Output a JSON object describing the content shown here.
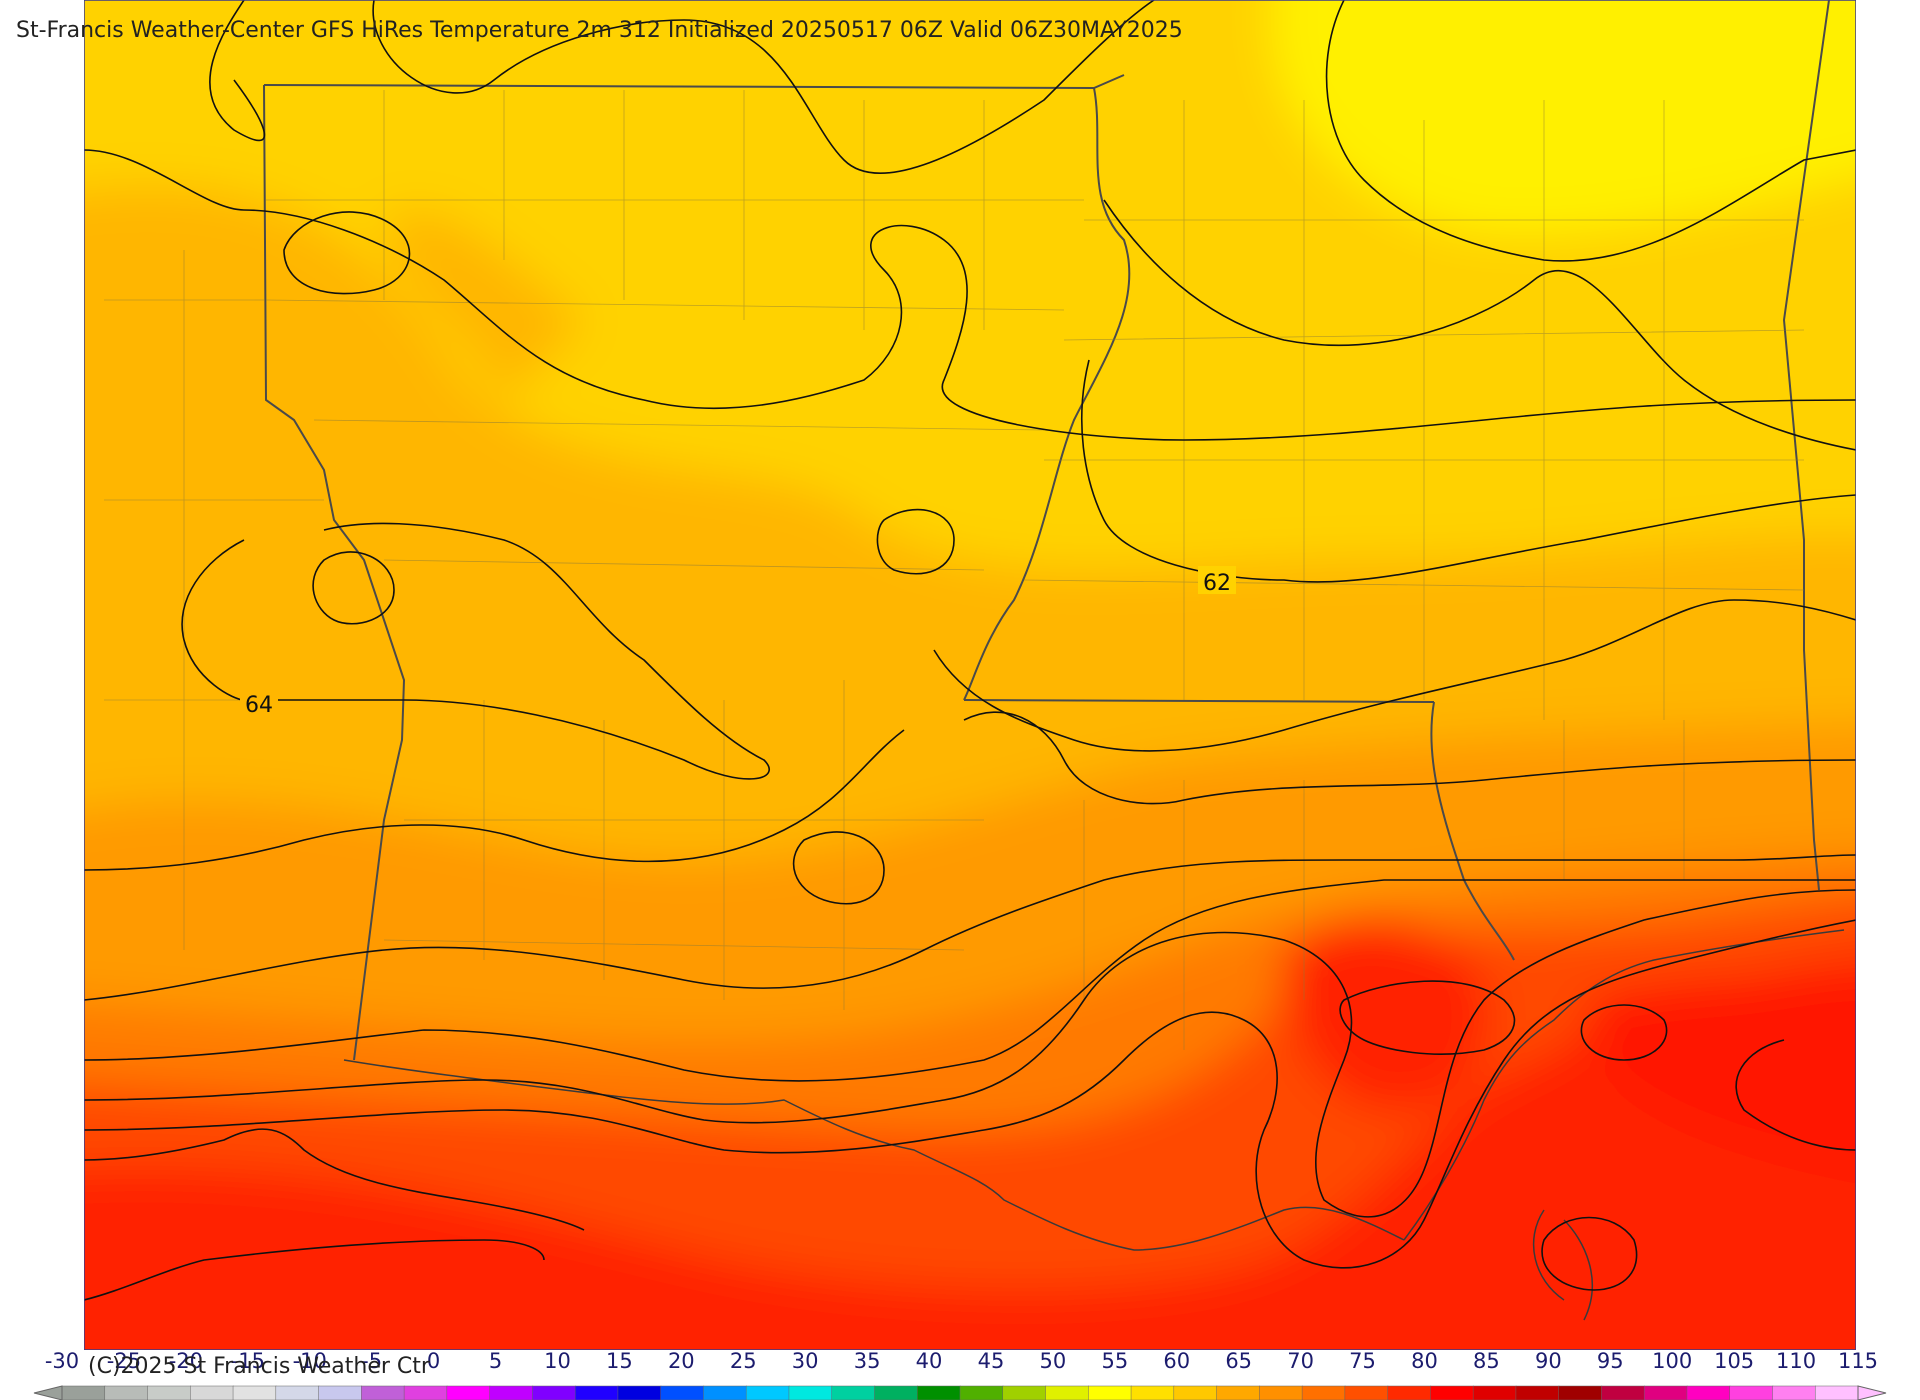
{
  "title": "St-Francis Weather-Center GFS HiRes Temperature 2m  312 Initialized 20250517 06Z Valid 06Z30MAY2025",
  "copyright": "(C)2025 St Francis Weather Ctr",
  "contour_labels": [
    "62",
    "64"
  ],
  "colorbar": {
    "ticks": [
      "-30",
      "-25",
      "-20",
      "-15",
      "-10",
      "-5",
      "0",
      "5",
      "10",
      "15",
      "20",
      "25",
      "30",
      "35",
      "40",
      "45",
      "50",
      "55",
      "60",
      "65",
      "70",
      "75",
      "80",
      "85",
      "90",
      "95",
      "100",
      "105",
      "110",
      "115"
    ],
    "colors": [
      "#9aa09a",
      "#b8bcb8",
      "#c8ccc8",
      "#d8d8d8",
      "#e2e2e2",
      "#d4d8e8",
      "#c8c8ee",
      "#c060d8",
      "#e040e0",
      "#ff00ff",
      "#c000ff",
      "#8000ff",
      "#2000ff",
      "#0000e0",
      "#0050ff",
      "#0090ff",
      "#00c8ff",
      "#00e8e0",
      "#00d0a0",
      "#00b060",
      "#009000",
      "#50b000",
      "#a0d000",
      "#e0f000",
      "#ffff00",
      "#ffe000",
      "#ffc800",
      "#ffa800",
      "#ff9000",
      "#ff7000",
      "#ff5000",
      "#ff2a00",
      "#ff0000",
      "#e00000",
      "#c00000",
      "#a00000",
      "#c00040",
      "#e00080",
      "#ff00c0",
      "#ff40e0",
      "#ff80f0",
      "#ffc0ff"
    ]
  },
  "colors": {
    "yellow": "#ffef00",
    "gold": "#ffd200",
    "amber": "#ffb600",
    "orange": "#ff9a00",
    "dark_orange": "#ff7000",
    "red_orange": "#ff4a00",
    "red": "#ff1a00"
  }
}
